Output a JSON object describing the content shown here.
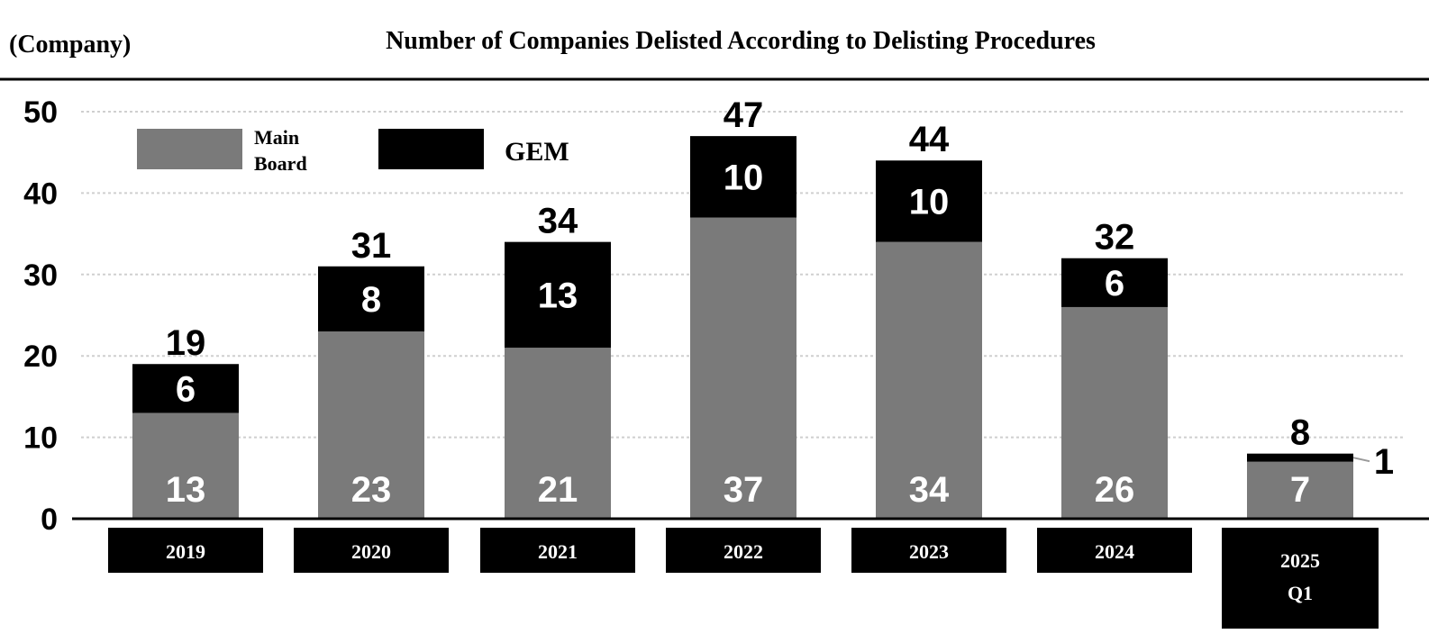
{
  "unit_label": "(Company)",
  "chart_data": {
    "type": "bar",
    "stacked": true,
    "title": "Number of Companies Delisted According to Delisting Procedures",
    "categories": [
      "2019",
      "2020",
      "2021",
      "2022",
      "2023",
      "2024",
      "2025\nQ1"
    ],
    "series": [
      {
        "name": "Main Board",
        "color": "#7a7a7a",
        "values": [
          13,
          23,
          21,
          37,
          34,
          26,
          7
        ]
      },
      {
        "name": "GEM",
        "color": "#000000",
        "values": [
          6,
          8,
          13,
          10,
          10,
          6,
          1
        ]
      }
    ],
    "totals": [
      19,
      31,
      34,
      47,
      44,
      32,
      8
    ],
    "yticks": [
      0,
      10,
      20,
      30,
      40,
      50
    ],
    "ylim": [
      0,
      50
    ],
    "grid": true,
    "legend": "top-left",
    "xlabel": "",
    "ylabel": ""
  }
}
